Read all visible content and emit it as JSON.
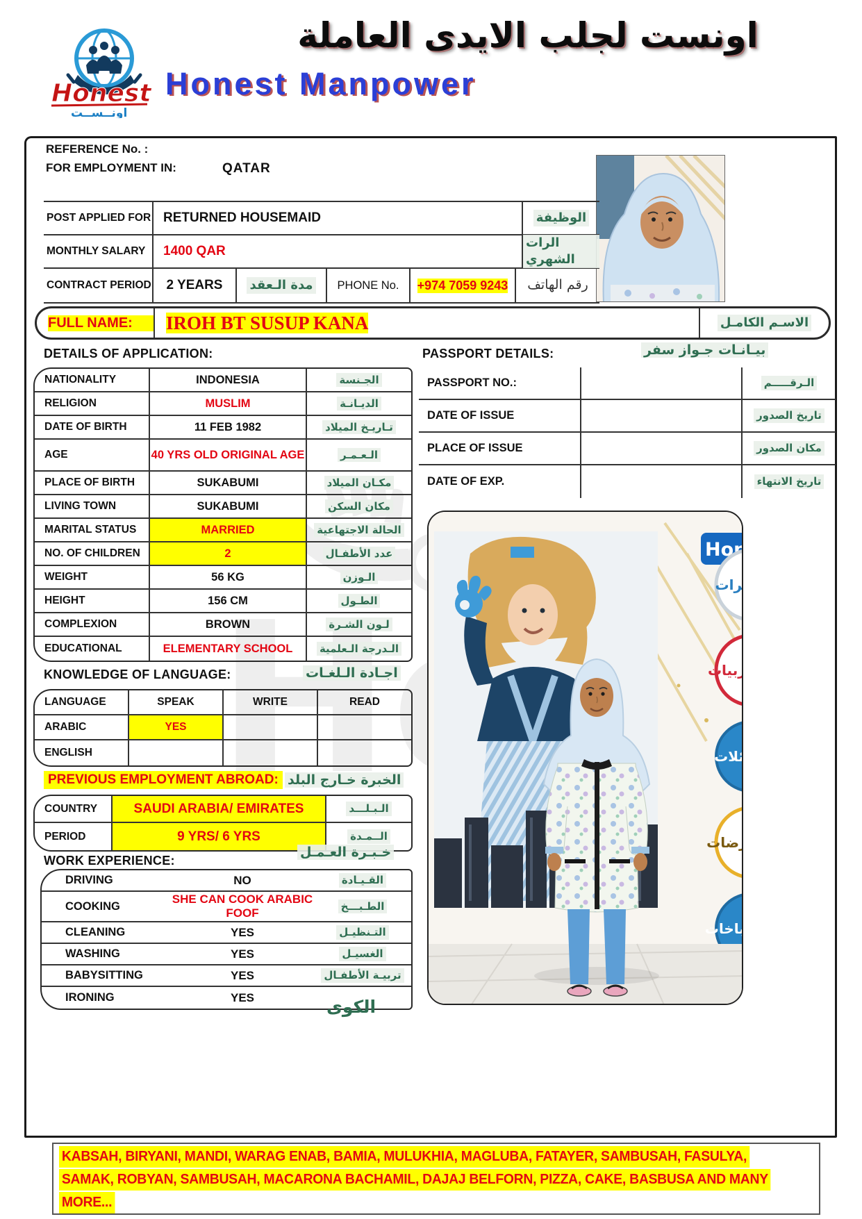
{
  "header": {
    "arabic_title": "اونست لجلب الايدى العاملة",
    "company_en": "Honest Manpower",
    "logo": {
      "name_en": "Honest",
      "name_ar": "اونــســت"
    }
  },
  "top": {
    "reference_label": "REFERENCE No. :",
    "employment_label": "FOR EMPLOYMENT IN:",
    "employment_value": "QATAR",
    "post": {
      "label": "POST APPLIED FOR",
      "value": "RETURNED HOUSEMAID",
      "arabic": "الوظيفة"
    },
    "salary": {
      "label": "MONTHLY SALARY",
      "value": "1400 QAR",
      "arabic": "الرات الشهري"
    },
    "contract": {
      "label": "CONTRACT PERIOD",
      "value": "2 YEARS",
      "arabic": "مدة الـعقد"
    },
    "phone": {
      "label": "PHONE No.",
      "value": "+974 7059 9243",
      "arabic": "رقم الهاتف"
    }
  },
  "full_name": {
    "label": "FULL NAME:",
    "value": "IROH BT SUSUP KANA",
    "arabic": "الاسـم الكامـل"
  },
  "details": {
    "heading": "DETAILS OF APPLICATION:",
    "rows": [
      {
        "label": "NATIONALITY",
        "value": "INDONESIA",
        "arabic": "الجـنسة",
        "style": ""
      },
      {
        "label": "RELIGION",
        "value": "MUSLIM",
        "arabic": "الديـانـة",
        "style": "red"
      },
      {
        "label": "DATE OF BIRTH",
        "value": "11 FEB 1982",
        "arabic": "تـاريـخ الميلاد",
        "style": ""
      },
      {
        "label": "AGE",
        "value": "40 YRS OLD ORIGINAL AGE",
        "arabic": "الـعـمـر",
        "style": "red"
      },
      {
        "label": "PLACE OF BIRTH",
        "value": "SUKABUMI",
        "arabic": "مكـان الميلاد",
        "style": ""
      },
      {
        "label": "LIVING TOWN",
        "value": "SUKABUMI",
        "arabic": "مكان السكن",
        "style": ""
      },
      {
        "label": "MARITAL STATUS",
        "value": "MARRIED",
        "arabic": "الحالة الاجتهاعية",
        "style": "red hl"
      },
      {
        "label": "NO. OF CHILDREN",
        "value": "2",
        "arabic": "عدد الأطفـال",
        "style": "red hl"
      },
      {
        "label": "WEIGHT",
        "value": "56 KG",
        "arabic": "الـوزن",
        "style": ""
      },
      {
        "label": "HEIGHT",
        "value": "156 CM",
        "arabic": "الطـول",
        "style": ""
      },
      {
        "label": "COMPLEXION",
        "value": "BROWN",
        "arabic": "لـون الشـرة",
        "style": ""
      },
      {
        "label": "EDUCATIONAL",
        "value": "ELEMENTARY SCHOOL",
        "arabic": "الـدرجة الـعلمية",
        "style": "red"
      }
    ]
  },
  "passport": {
    "heading": "PASSPORT DETAILS:",
    "heading_arabic": "بيـانـات جـواز سفر",
    "rows": [
      {
        "label": "PASSPORT NO.:",
        "value": "",
        "arabic": "الـرقـــــم"
      },
      {
        "label": "DATE OF ISSUE",
        "value": "",
        "arabic": "تاريخ الصدور"
      },
      {
        "label": "PLACE OF ISSUE",
        "value": "",
        "arabic": "مكان الصدور"
      },
      {
        "label": "DATE OF EXP.",
        "value": "",
        "arabic": "تاريخ الانتهاء"
      }
    ]
  },
  "language": {
    "heading": "KNOWLEDGE OF LANGUAGE:",
    "heading_arabic": "اجـادة الـلغـات",
    "columns": [
      "LANGUAGE",
      "SPEAK",
      "WRITE",
      "READ"
    ],
    "rows": [
      {
        "language": "ARABIC",
        "speak": "YES",
        "write": "",
        "read": "",
        "speak_style": "red hl"
      },
      {
        "language": "ENGLISH",
        "speak": "",
        "write": "",
        "read": "",
        "speak_style": ""
      }
    ]
  },
  "previous_employment": {
    "heading": "PREVIOUS EMPLOYMENT ABROAD:",
    "heading_arabic": "الخبرة خـارج البلد",
    "rows": [
      {
        "label": "COUNTRY",
        "value": "SAUDI ARABIA/ EMIRATES",
        "arabic": "الـبـلـــد",
        "style": "red hl"
      },
      {
        "label": "PERIOD",
        "value": "9 YRS/ 6 YRS",
        "arabic": "الــمـدة",
        "style": "red hl"
      }
    ]
  },
  "work_experience": {
    "heading": "WORK EXPERIENCE:",
    "heading_arabic": "خـبـرة العـمـل",
    "ironing_arabic": "الكوى",
    "rows": [
      {
        "label": "DRIVING",
        "value": "NO",
        "arabic": "القـيـادة",
        "style": ""
      },
      {
        "label": "COOKING",
        "value": "SHE CAN COOK ARABIC FOOF",
        "arabic": "الطـبـــخ",
        "style": "red"
      },
      {
        "label": "CLEANING",
        "value": "YES",
        "arabic": "التـنظيـل",
        "style": ""
      },
      {
        "label": "WASHING",
        "value": "YES",
        "arabic": "الغسيـل",
        "style": ""
      },
      {
        "label": "BABYSITTING",
        "value": "YES",
        "arabic": "تربيـة الأطفـال",
        "style": ""
      },
      {
        "label": "IRONING",
        "value": "YES",
        "arabic": "",
        "style": ""
      }
    ]
  },
  "photo_panel": {
    "brand_fragment": "Hon",
    "circle_labels": [
      "يرات",
      "مربيات",
      "ائلات",
      "مرضات",
      "طباخات"
    ]
  },
  "footer_note": {
    "lines": [
      "KABSAH, BIRYANI, MANDI, WARAG ENAB, BAMIA, MULUKHIA, MAGLUBA, FATAYER, SAMBUSAH, FASULYA,",
      "SAMAK, ROBYAN, SAMBUSAH, MACARONA BACHAMIL, DAJAJ BELFORN, PIZZA, CAKE, BASBUSA AND MANY",
      "MORE..."
    ]
  },
  "colors": {
    "accent_red": "#e30613",
    "highlight_yellow": "#ffff00",
    "arabic_green": "#2f6e52",
    "brand_blue": "#2b3fd6"
  }
}
